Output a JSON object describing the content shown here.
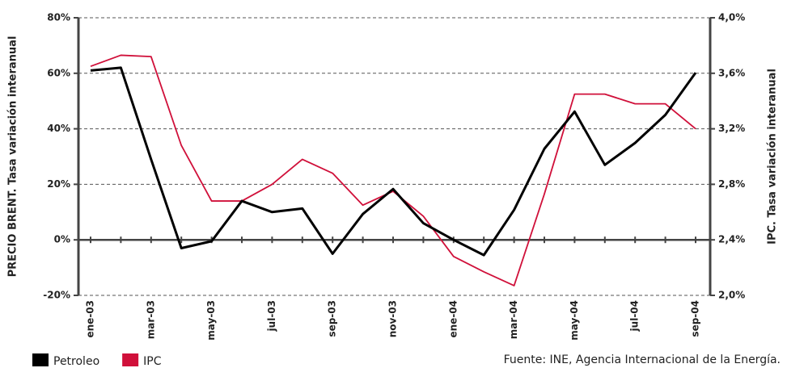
{
  "chart_data": {
    "type": "line",
    "categories": [
      "ene-03",
      null,
      "mar-03",
      null,
      "may-03",
      null,
      "jul-03",
      null,
      "sep-03",
      null,
      "nov-03",
      null,
      "ene-04",
      null,
      "mar-04",
      null,
      "may-04",
      null,
      "jul-04",
      null,
      "sep-04"
    ],
    "series": [
      {
        "name": "Petroleo",
        "color": "#000000",
        "values": [
          61,
          62,
          29,
          -3,
          -0.5,
          14,
          10,
          11.3,
          -5,
          9.3,
          18.3,
          6,
          0,
          -5.5,
          10.8,
          32.8,
          46.2,
          27,
          34.9,
          45,
          60.2
        ]
      },
      {
        "name": "IPC",
        "color": "#d0103a",
        "axis": "y2",
        "values": [
          3.65,
          3.73,
          3.72,
          3.08,
          2.68,
          2.68,
          2.8,
          2.98,
          2.88,
          2.65,
          2.75,
          2.57,
          2.28,
          2.17,
          2.07,
          2.73,
          3.45,
          3.45,
          3.38,
          3.38,
          3.2
        ]
      }
    ],
    "ylim": [
      -20,
      80
    ],
    "yticks": [
      {
        "value": -20,
        "label": "-20%"
      },
      {
        "value": 0,
        "label": "0%"
      },
      {
        "value": 20,
        "label": "20%"
      },
      {
        "value": 40,
        "label": "40%"
      },
      {
        "value": 60,
        "label": "60%"
      },
      {
        "value": 80,
        "label": "80%"
      }
    ],
    "y2lim": [
      2.0,
      4.0
    ],
    "y2ticks": [
      {
        "value": 2.0,
        "label": "2,0%"
      },
      {
        "value": 2.4,
        "label": "2,4%"
      },
      {
        "value": 2.8,
        "label": "2,8%"
      },
      {
        "value": 3.2,
        "label": "3,2%"
      },
      {
        "value": 3.6,
        "label": "3,6%"
      },
      {
        "value": 4.0,
        "label": "4,0%"
      }
    ],
    "ylabel": "PRECIO BRENT. Tasa variación interanual",
    "y2label": "IPC. Tasa variación interanual",
    "grid": true,
    "legend": "bottom-left",
    "source": "Fuente: INE, Agencia Internacional de la Energía."
  }
}
